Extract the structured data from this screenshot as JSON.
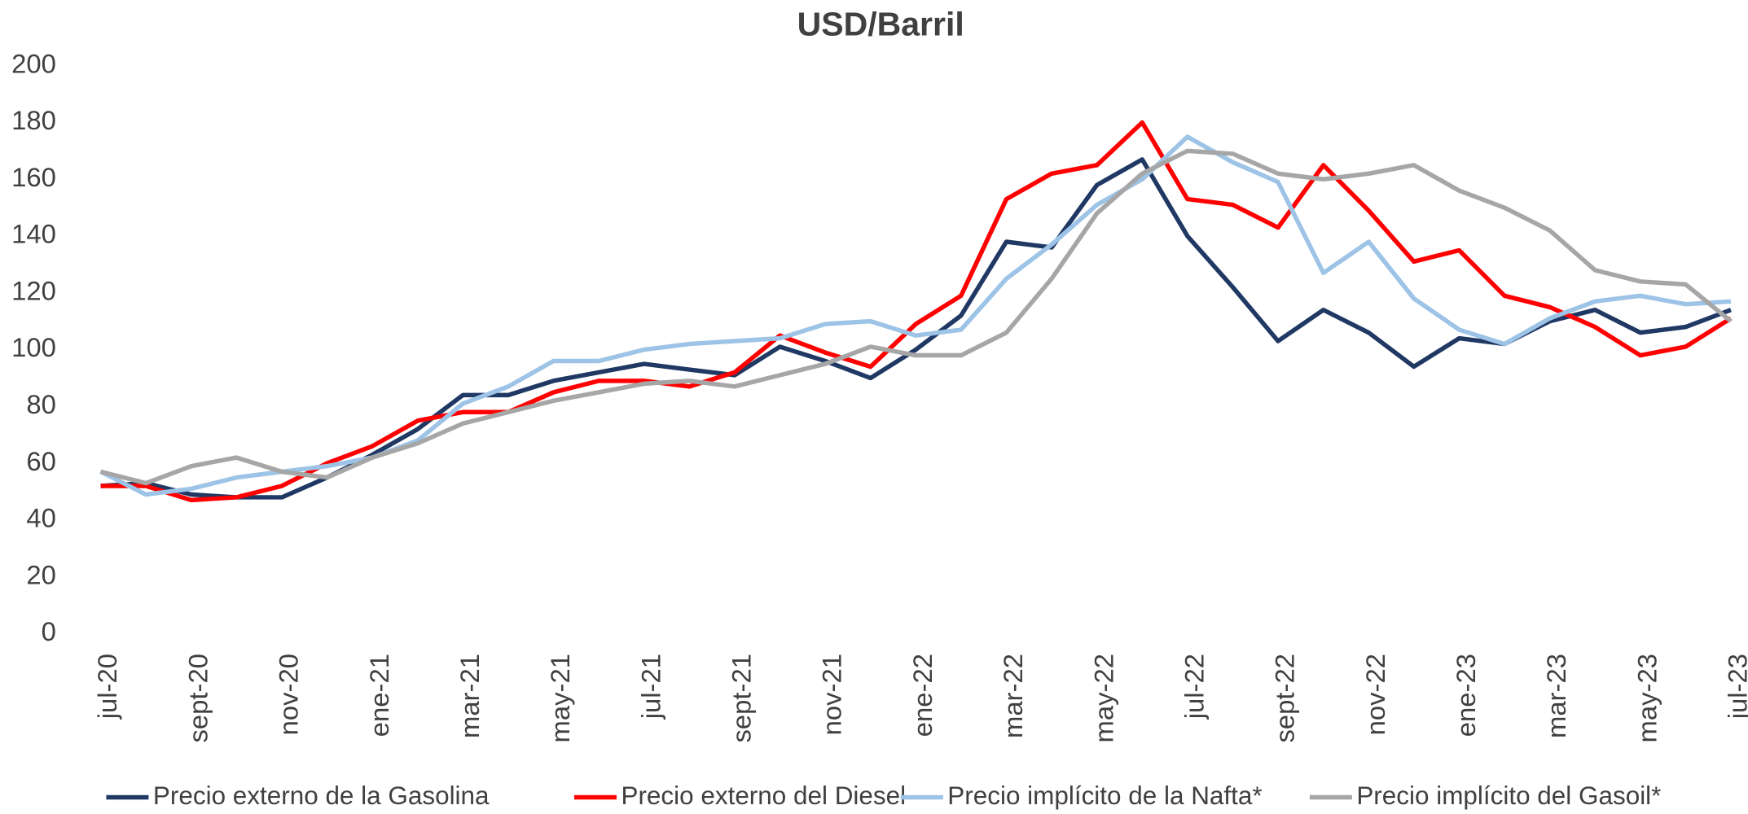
{
  "chart_data": {
    "type": "line",
    "title": "USD/Barril",
    "categories": [
      "jul-20",
      null,
      "sept-20",
      null,
      "nov-20",
      null,
      "ene-21",
      null,
      "mar-21",
      null,
      "may-21",
      null,
      "jul-21",
      null,
      "sept-21",
      null,
      "nov-21",
      null,
      "ene-22",
      null,
      "mar-22",
      null,
      "may-22",
      null,
      "jul-22",
      null,
      "sept-22",
      null,
      "nov-22",
      null,
      "ene-23",
      null,
      "mar-23",
      null,
      "may-23",
      null,
      "jul-23"
    ],
    "series": [
      {
        "name": "Precio externo de la Gasolina",
        "color": "#203864",
        "values": [
          52,
          53,
          49,
          48,
          48,
          55,
          63,
          72,
          84,
          84,
          89,
          92,
          95,
          93,
          91,
          101,
          96,
          90,
          100,
          112,
          138,
          136,
          158,
          167,
          140,
          122,
          103,
          114,
          106,
          94,
          104,
          102,
          110,
          114,
          106,
          108,
          114
        ]
      },
      {
        "name": "Precio externo del Diesel",
        "color": "#ff0000",
        "values": [
          52,
          52,
          47,
          48,
          52,
          60,
          66,
          75,
          78,
          78,
          85,
          89,
          89,
          87,
          92,
          105,
          99,
          94,
          109,
          119,
          153,
          162,
          165,
          180,
          153,
          151,
          143,
          165,
          149,
          131,
          135,
          119,
          115,
          108,
          98,
          101,
          111
        ]
      },
      {
        "name": "Precio implícito de la Nafta*",
        "color": "#9dc3e6",
        "values": [
          57,
          49,
          51,
          55,
          57,
          59,
          62,
          68,
          81,
          87,
          96,
          96,
          100,
          102,
          103,
          104,
          109,
          110,
          105,
          107,
          125,
          137,
          151,
          160,
          175,
          166,
          159,
          127,
          138,
          118,
          107,
          102,
          111,
          117,
          119,
          116,
          117
        ]
      },
      {
        "name": "Precio implícito del Gasoil*",
        "color": "#a6a6a6",
        "values": [
          57,
          53,
          59,
          62,
          57,
          55,
          62,
          67,
          74,
          78,
          82,
          85,
          88,
          89,
          87,
          91,
          95,
          101,
          98,
          98,
          106,
          125,
          148,
          162,
          170,
          169,
          162,
          160,
          162,
          165,
          156,
          150,
          142,
          128,
          124,
          123,
          110
        ]
      }
    ],
    "ylim": [
      0,
      200
    ],
    "yticks": [
      0,
      20,
      40,
      60,
      80,
      100,
      120,
      140,
      160,
      180,
      200
    ],
    "grid": false,
    "legend": "bottom"
  }
}
